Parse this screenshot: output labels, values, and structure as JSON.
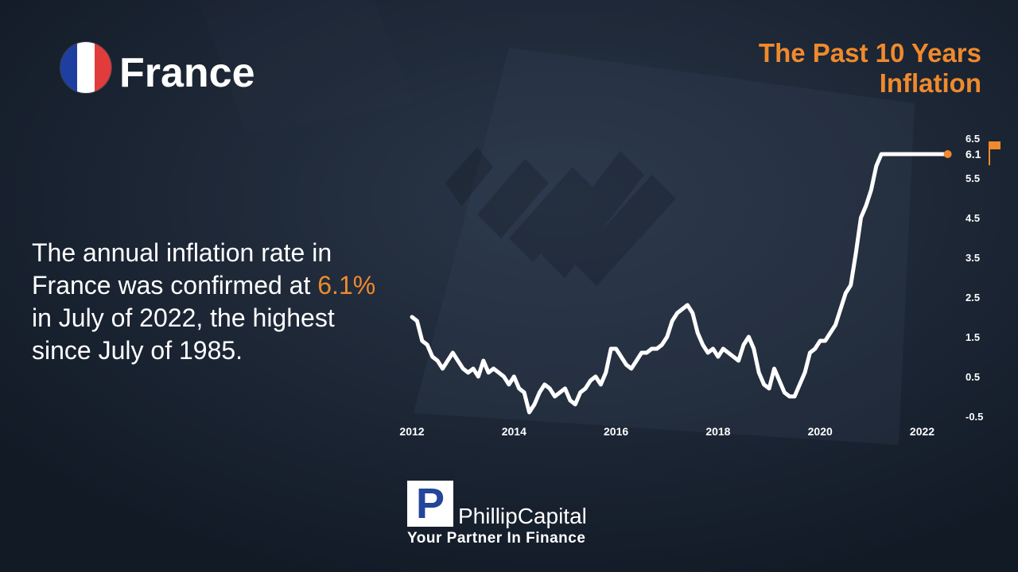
{
  "header": {
    "country": "France",
    "chart_title_line1": "The Past 10 Years",
    "chart_title_line2": "Inflation"
  },
  "description": {
    "part1": "The annual inflation rate in France was confirmed at ",
    "highlight": "6.1%",
    "part2": " in July of 2022, the highest since July of 1985."
  },
  "colors": {
    "accent": "#ef8a2d",
    "line": "#ffffff",
    "flag_blue": "#1f3fa0",
    "flag_white": "#ffffff",
    "flag_red": "#e23b3b"
  },
  "logo": {
    "mark": "P",
    "name": "PhillipCapital",
    "tagline": "Your Partner In Finance"
  },
  "icons": {
    "flag": "flag-icon",
    "country_flag": "france-flag-icon"
  },
  "chart_data": {
    "type": "line",
    "title": "The Past 10 Years Inflation",
    "xlabel": "",
    "ylabel": "",
    "xlim": [
      2012.0,
      2022.6
    ],
    "ylim": [
      -0.5,
      6.5
    ],
    "x_ticks": [
      2012,
      2014,
      2016,
      2018,
      2020,
      2022
    ],
    "y_ticks": [
      -0.5,
      0.5,
      1.5,
      2.5,
      3.5,
      4.5,
      5.5,
      6.5
    ],
    "y_tick_labels": [
      "-0.5",
      "0.5",
      "1.5",
      "2.5",
      "3.5",
      "4.5",
      "5.5",
      "6.5"
    ],
    "grid": false,
    "legend": "none",
    "last_value_label": "6.1",
    "series": [
      {
        "x": [
          2012.0,
          2012.1,
          2012.2,
          2012.3,
          2012.4,
          2012.5,
          2012.6,
          2012.7,
          2012.8,
          2012.9,
          2013.0,
          2013.1,
          2013.2,
          2013.3,
          2013.4,
          2013.5,
          2013.6,
          2013.7,
          2013.8,
          2013.9,
          2014.0,
          2014.1,
          2014.2,
          2014.3,
          2014.4,
          2014.5,
          2014.6,
          2014.7,
          2014.8,
          2014.9,
          2015.0,
          2015.1,
          2015.2,
          2015.3,
          2015.4,
          2015.5,
          2015.6,
          2015.7,
          2015.8,
          2015.9,
          2016.0,
          2016.1,
          2016.2,
          2016.3,
          2016.4,
          2016.5,
          2016.6,
          2016.7,
          2016.8,
          2016.9,
          2017.0,
          2017.1,
          2017.2,
          2017.3,
          2017.4,
          2017.5,
          2017.6,
          2017.7,
          2017.8,
          2017.9,
          2018.0,
          2018.1,
          2018.2,
          2018.3,
          2018.4,
          2018.5,
          2018.6,
          2018.7,
          2018.8,
          2018.9,
          2019.0,
          2019.1,
          2019.2,
          2019.3,
          2019.4,
          2019.5,
          2019.6,
          2019.7,
          2019.8,
          2019.9,
          2020.0,
          2020.1,
          2020.2,
          2020.3,
          2020.4,
          2020.5,
          2020.6,
          2020.7,
          2020.8,
          2020.9,
          2021.0,
          2021.1,
          2021.2,
          2021.3,
          2021.4,
          2021.5,
          2021.6,
          2021.7,
          2021.8,
          2021.9,
          2022.0,
          2022.1,
          2022.2,
          2022.3,
          2022.4,
          2022.5
        ],
        "y": [
          2.0,
          1.9,
          1.4,
          1.3,
          1.0,
          0.9,
          0.7,
          0.9,
          1.1,
          0.9,
          0.7,
          0.6,
          0.7,
          0.5,
          0.9,
          0.6,
          0.7,
          0.6,
          0.5,
          0.3,
          0.5,
          0.2,
          0.1,
          -0.4,
          -0.2,
          0.1,
          0.3,
          0.2,
          0.0,
          0.1,
          0.2,
          -0.1,
          -0.2,
          0.1,
          0.2,
          0.4,
          0.5,
          0.3,
          0.6,
          1.2,
          1.2,
          1.0,
          0.8,
          0.7,
          0.9,
          1.1,
          1.1,
          1.2,
          1.2,
          1.3,
          1.5,
          1.9,
          2.1,
          2.2,
          2.3,
          2.1,
          1.6,
          1.3,
          1.1,
          1.2,
          1.0,
          1.2,
          1.1,
          1.0,
          0.9,
          1.3,
          1.5,
          1.2,
          0.6,
          0.3,
          0.2,
          0.7,
          0.4,
          0.1,
          0.0,
          0.0,
          0.3,
          0.6,
          1.1,
          1.2,
          1.4,
          1.4,
          1.6,
          1.8,
          2.2,
          2.6,
          2.8,
          3.6,
          4.5,
          4.8,
          5.2,
          5.8,
          6.1,
          6.1,
          6.1,
          6.1,
          6.1,
          6.1,
          6.1,
          6.1,
          6.1,
          6.1,
          6.1,
          6.1,
          6.1,
          6.1
        ]
      }
    ]
  }
}
